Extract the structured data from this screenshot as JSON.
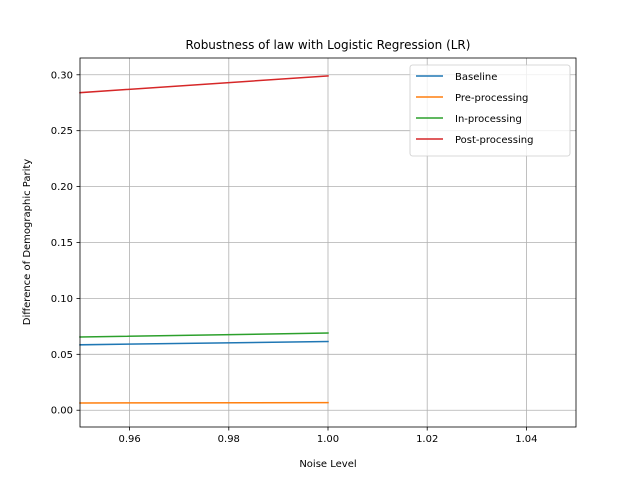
{
  "chart_data": {
    "type": "line",
    "title": "Robustness of law with Logistic Regression (LR)",
    "xlabel": "Noise Level",
    "ylabel": "Difference of Demographic Parity",
    "xlim": [
      0.95,
      1.05
    ],
    "ylim": [
      -0.015,
      0.315
    ],
    "xticks": [
      0.96,
      0.98,
      1.0,
      1.02,
      1.04
    ],
    "xtick_labels": [
      "0.96",
      "0.98",
      "1.00",
      "1.02",
      "1.04"
    ],
    "yticks": [
      0.0,
      0.05,
      0.1,
      0.15,
      0.2,
      0.25,
      0.3
    ],
    "ytick_labels": [
      "0.00",
      "0.05",
      "0.10",
      "0.15",
      "0.20",
      "0.25",
      "0.30"
    ],
    "grid": true,
    "legend_position": "top-right",
    "x": [
      0.95,
      1.0
    ],
    "series": [
      {
        "name": "Baseline",
        "color": "#1f77b4",
        "values": [
          0.0585,
          0.0615
        ]
      },
      {
        "name": "Pre-processing",
        "color": "#ff7f0e",
        "values": [
          0.0065,
          0.0068
        ]
      },
      {
        "name": "In-processing",
        "color": "#2ca02c",
        "values": [
          0.0655,
          0.069
        ]
      },
      {
        "name": "Post-processing",
        "color": "#d62728",
        "values": [
          0.284,
          0.299
        ]
      }
    ]
  }
}
